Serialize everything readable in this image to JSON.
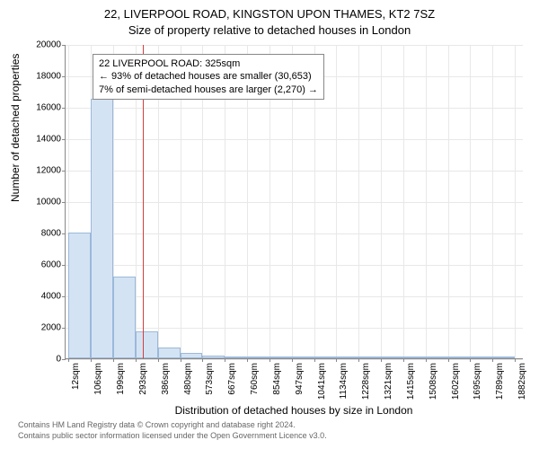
{
  "title_main": "22, LIVERPOOL ROAD, KINGSTON UPON THAMES, KT2 7SZ",
  "title_sub": "Size of property relative to detached houses in London",
  "ylabel": "Number of detached properties",
  "xlabel": "Distribution of detached houses by size in London",
  "footer_line1": "Contains HM Land Registry data © Crown copyright and database right 2024.",
  "footer_line2": "Contains public sector information licensed under the Open Government Licence v3.0.",
  "annotation": {
    "line1": "22 LIVERPOOL ROAD: 325sqm",
    "line2": "← 93% of detached houses are smaller (30,653)",
    "line3": "7% of semi-detached houses are larger (2,270) →"
  },
  "chart": {
    "type": "histogram",
    "ylim": [
      0,
      20000
    ],
    "yticks": [
      0,
      2000,
      4000,
      6000,
      8000,
      10000,
      12000,
      14000,
      16000,
      18000,
      20000
    ],
    "xlim": [
      0,
      1920
    ],
    "xtick_values": [
      12,
      106,
      199,
      293,
      386,
      480,
      573,
      667,
      760,
      854,
      947,
      1041,
      1134,
      1228,
      1321,
      1415,
      1508,
      1602,
      1695,
      1789,
      1882
    ],
    "xtick_labels": [
      "12sqm",
      "106sqm",
      "199sqm",
      "293sqm",
      "386sqm",
      "480sqm",
      "573sqm",
      "667sqm",
      "760sqm",
      "854sqm",
      "947sqm",
      "1041sqm",
      "1134sqm",
      "1228sqm",
      "1321sqm",
      "1415sqm",
      "1508sqm",
      "1602sqm",
      "1695sqm",
      "1789sqm",
      "1882sqm"
    ],
    "reference_value": 325,
    "reference_color": "#d04040",
    "bar_fill": "#d4e3f3",
    "bar_stroke": "#9bb8d9",
    "grid_color": "#e8e8e8",
    "background_color": "#ffffff",
    "bars": [
      {
        "x0": 12,
        "x1": 106,
        "value": 8000
      },
      {
        "x0": 106,
        "x1": 199,
        "value": 16500
      },
      {
        "x0": 199,
        "x1": 293,
        "value": 5200
      },
      {
        "x0": 293,
        "x1": 386,
        "value": 1700
      },
      {
        "x0": 386,
        "x1": 480,
        "value": 700
      },
      {
        "x0": 480,
        "x1": 573,
        "value": 350
      },
      {
        "x0": 573,
        "x1": 667,
        "value": 180
      },
      {
        "x0": 667,
        "x1": 760,
        "value": 120
      },
      {
        "x0": 760,
        "x1": 854,
        "value": 80
      },
      {
        "x0": 854,
        "x1": 947,
        "value": 60
      },
      {
        "x0": 947,
        "x1": 1041,
        "value": 30
      },
      {
        "x0": 1041,
        "x1": 1134,
        "value": 20
      },
      {
        "x0": 1134,
        "x1": 1228,
        "value": 15
      },
      {
        "x0": 1228,
        "x1": 1321,
        "value": 10
      },
      {
        "x0": 1321,
        "x1": 1415,
        "value": 8
      },
      {
        "x0": 1415,
        "x1": 1508,
        "value": 6
      },
      {
        "x0": 1508,
        "x1": 1602,
        "value": 5
      },
      {
        "x0": 1602,
        "x1": 1695,
        "value": 4
      },
      {
        "x0": 1695,
        "x1": 1789,
        "value": 3
      },
      {
        "x0": 1789,
        "x1": 1882,
        "value": 2
      }
    ]
  }
}
